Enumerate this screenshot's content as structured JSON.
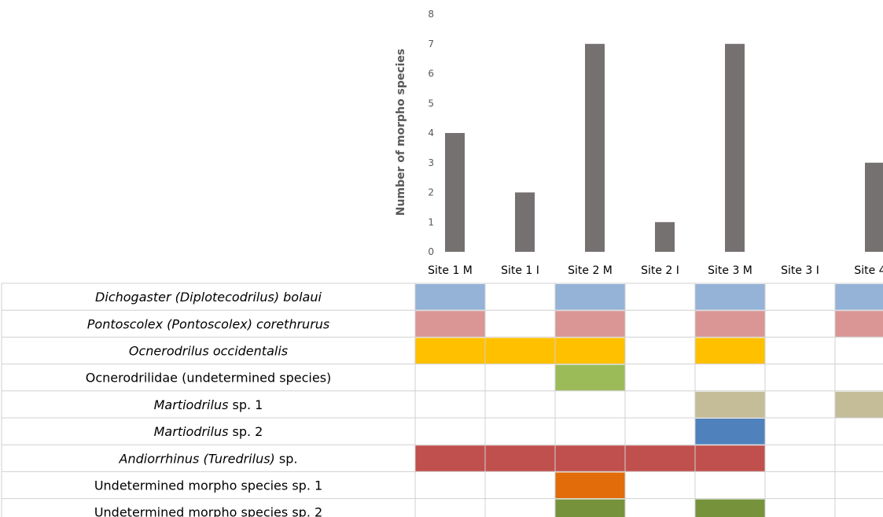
{
  "chart_data": {
    "type": "bar",
    "ylabel": "Number of morpho species",
    "ylim": [
      0,
      8
    ],
    "yticks": [
      0,
      1,
      2,
      3,
      4,
      5,
      6,
      7,
      8
    ],
    "categories": [
      "Site 1 M",
      "Site 1 I",
      "Site 2 M",
      "Site 2 I",
      "Site 3 M",
      "Site 3 I",
      "Site 4"
    ],
    "values": [
      4,
      2,
      7,
      1,
      7,
      0,
      3
    ],
    "bar_color": "#767171",
    "grid": false
  },
  "species_table": {
    "rows": [
      {
        "parts": [
          {
            "t": "Dichogaster (Diplotecodrilus) bolaui",
            "i": true
          }
        ],
        "color": "#95B3D7",
        "presence": [
          1,
          0,
          1,
          0,
          1,
          0,
          1
        ]
      },
      {
        "parts": [
          {
            "t": "Pontoscolex (Pontoscolex) corethrurus",
            "i": true
          }
        ],
        "color": "#DA9694",
        "presence": [
          1,
          0,
          1,
          0,
          1,
          0,
          1
        ]
      },
      {
        "parts": [
          {
            "t": "Ocnerodrilus occidentalis",
            "i": true
          }
        ],
        "color": "#FFC000",
        "presence": [
          1,
          1,
          1,
          0,
          1,
          0,
          0
        ]
      },
      {
        "parts": [
          {
            "t": "Ocnerodrilidae (undetermined species)",
            "i": false
          }
        ],
        "color": "#9BBB59",
        "presence": [
          0,
          0,
          1,
          0,
          0,
          0,
          0
        ]
      },
      {
        "parts": [
          {
            "t": "Martiodrilus",
            "i": true
          },
          {
            "t": " sp. 1",
            "i": false
          }
        ],
        "color": "#C4BD97",
        "presence": [
          0,
          0,
          0,
          0,
          1,
          0,
          1
        ]
      },
      {
        "parts": [
          {
            "t": "Martiodrilus",
            "i": true
          },
          {
            "t": " sp. 2",
            "i": false
          }
        ],
        "color": "#4F81BD",
        "presence": [
          0,
          0,
          0,
          0,
          1,
          0,
          0
        ]
      },
      {
        "parts": [
          {
            "t": "Andiorrhinus (Turedrilus)",
            "i": true
          },
          {
            "t": " sp.",
            "i": false
          }
        ],
        "color": "#C0504D",
        "presence": [
          1,
          1,
          1,
          1,
          1,
          0,
          0
        ]
      },
      {
        "parts": [
          {
            "t": "Undetermined morpho species sp. 1",
            "i": false
          }
        ],
        "color": "#E26B0A",
        "presence": [
          0,
          0,
          1,
          0,
          0,
          0,
          0
        ]
      },
      {
        "parts": [
          {
            "t": "Undetermined morpho species sp. 2",
            "i": false
          }
        ],
        "color": "#76933C",
        "presence": [
          0,
          0,
          1,
          0,
          1,
          0,
          0
        ]
      }
    ]
  }
}
